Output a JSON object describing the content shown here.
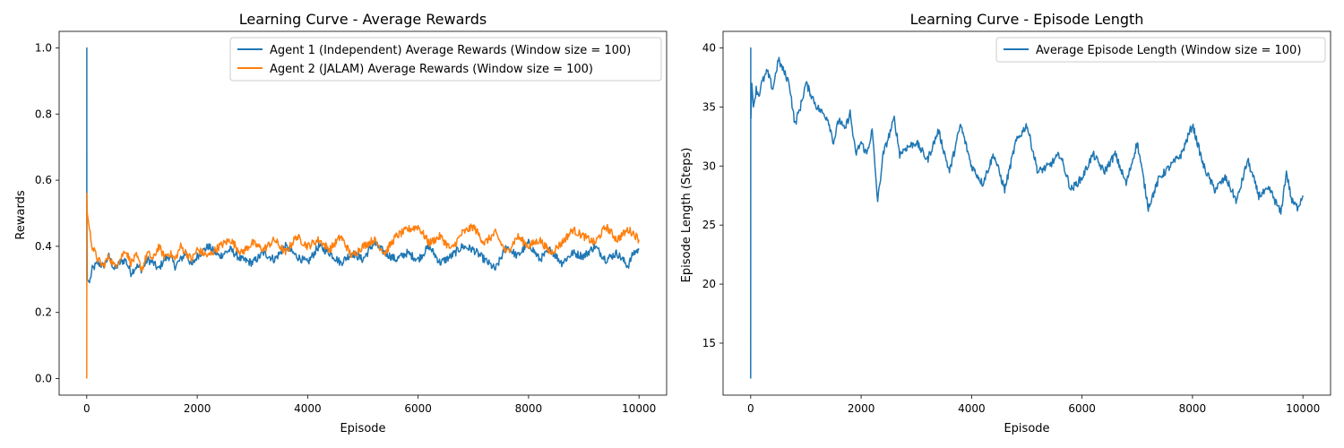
{
  "chart_data": [
    {
      "type": "line",
      "title": "Learning Curve - Average Rewards",
      "xlabel": "Episode",
      "ylabel": "Rewards",
      "xlim": [
        -500,
        10500
      ],
      "ylim": [
        -0.05,
        1.05
      ],
      "xticks": [
        0,
        2000,
        4000,
        6000,
        8000,
        10000
      ],
      "yticks": [
        0.0,
        0.2,
        0.4,
        0.6,
        0.8,
        1.0
      ],
      "xtick_labels": [
        "0",
        "2000",
        "4000",
        "6000",
        "8000",
        "10000"
      ],
      "ytick_labels": [
        "0.0",
        "0.2",
        "0.4",
        "0.6",
        "0.8",
        "1.0"
      ],
      "legend_position": "upper right",
      "grid": false,
      "series": [
        {
          "name": "Agent 1 (Independent) Average Rewards (Window size = 100)",
          "color": "#1f77b4",
          "x": [
            0,
            1,
            2,
            5,
            10,
            50,
            100,
            200,
            300,
            400,
            500,
            600,
            700,
            800,
            900,
            1000,
            1100,
            1200,
            1300,
            1400,
            1500,
            1600,
            1700,
            1800,
            1900,
            2000,
            2200,
            2400,
            2600,
            2800,
            3000,
            3200,
            3400,
            3600,
            3800,
            4000,
            4200,
            4400,
            4600,
            4800,
            5000,
            5200,
            5400,
            5600,
            5800,
            6000,
            6200,
            6400,
            6600,
            6800,
            7000,
            7200,
            7400,
            7600,
            7800,
            8000,
            8200,
            8400,
            8600,
            8800,
            9000,
            9200,
            9400,
            9600,
            9800,
            9900,
            10000
          ],
          "values": [
            0.3,
            1.0,
            0.55,
            0.45,
            0.3,
            0.29,
            0.33,
            0.35,
            0.34,
            0.37,
            0.33,
            0.35,
            0.36,
            0.32,
            0.34,
            0.33,
            0.36,
            0.35,
            0.33,
            0.36,
            0.37,
            0.34,
            0.36,
            0.38,
            0.34,
            0.37,
            0.4,
            0.37,
            0.39,
            0.36,
            0.35,
            0.38,
            0.36,
            0.4,
            0.37,
            0.35,
            0.4,
            0.38,
            0.35,
            0.38,
            0.36,
            0.41,
            0.38,
            0.36,
            0.38,
            0.36,
            0.4,
            0.35,
            0.37,
            0.4,
            0.39,
            0.36,
            0.33,
            0.4,
            0.37,
            0.41,
            0.36,
            0.39,
            0.35,
            0.38,
            0.37,
            0.4,
            0.36,
            0.38,
            0.34,
            0.38,
            0.39
          ]
        },
        {
          "name": "Agent 2 (JALAM) Average Rewards (Window size = 100)",
          "color": "#ff7f0e",
          "x": [
            0,
            1,
            3,
            10,
            50,
            100,
            200,
            300,
            400,
            500,
            600,
            700,
            800,
            900,
            1000,
            1100,
            1200,
            1300,
            1400,
            1500,
            1600,
            1700,
            1800,
            1900,
            2000,
            2200,
            2400,
            2600,
            2800,
            3000,
            3200,
            3400,
            3600,
            3800,
            4000,
            4200,
            4400,
            4600,
            4800,
            5000,
            5200,
            5400,
            5600,
            5800,
            6000,
            6200,
            6400,
            6600,
            6800,
            7000,
            7200,
            7400,
            7600,
            7800,
            8000,
            8200,
            8400,
            8600,
            8800,
            9000,
            9200,
            9400,
            9600,
            9800,
            9900,
            10000
          ],
          "values": [
            0.0,
            0.3,
            0.56,
            0.5,
            0.45,
            0.4,
            0.36,
            0.34,
            0.37,
            0.34,
            0.36,
            0.39,
            0.35,
            0.37,
            0.33,
            0.38,
            0.36,
            0.4,
            0.37,
            0.38,
            0.36,
            0.4,
            0.38,
            0.36,
            0.39,
            0.37,
            0.4,
            0.42,
            0.38,
            0.41,
            0.39,
            0.42,
            0.38,
            0.43,
            0.4,
            0.42,
            0.39,
            0.43,
            0.37,
            0.4,
            0.42,
            0.38,
            0.43,
            0.45,
            0.46,
            0.41,
            0.43,
            0.39,
            0.44,
            0.46,
            0.41,
            0.44,
            0.38,
            0.43,
            0.4,
            0.42,
            0.38,
            0.41,
            0.45,
            0.43,
            0.41,
            0.46,
            0.42,
            0.45,
            0.44,
            0.42
          ]
        }
      ]
    },
    {
      "type": "line",
      "title": "Learning Curve - Episode Length",
      "xlabel": "Episode",
      "ylabel": "Episode Length (Steps)",
      "xlim": [
        -500,
        10500
      ],
      "ylim": [
        10.6,
        41.4
      ],
      "xticks": [
        0,
        2000,
        4000,
        6000,
        8000,
        10000
      ],
      "yticks": [
        15,
        20,
        25,
        30,
        35,
        40
      ],
      "xtick_labels": [
        "0",
        "2000",
        "4000",
        "6000",
        "8000",
        "10000"
      ],
      "ytick_labels": [
        "15",
        "20",
        "25",
        "30",
        "35",
        "40"
      ],
      "legend_position": "upper right",
      "grid": false,
      "series": [
        {
          "name": "Average Episode Length (Window size = 100)",
          "color": "#1f77b4",
          "x": [
            0,
            1,
            2,
            5,
            20,
            50,
            100,
            150,
            200,
            300,
            400,
            500,
            600,
            700,
            800,
            900,
            1000,
            1100,
            1200,
            1300,
            1400,
            1500,
            1600,
            1700,
            1800,
            1900,
            2000,
            2100,
            2200,
            2300,
            2400,
            2500,
            2600,
            2700,
            2800,
            3000,
            3200,
            3400,
            3600,
            3800,
            4000,
            4200,
            4400,
            4600,
            4800,
            5000,
            5200,
            5400,
            5600,
            5800,
            6000,
            6200,
            6400,
            6600,
            6800,
            7000,
            7200,
            7400,
            7600,
            7800,
            8000,
            8200,
            8400,
            8600,
            8800,
            9000,
            9200,
            9400,
            9600,
            9700,
            9800,
            9900,
            10000
          ],
          "values": [
            12,
            40,
            36,
            34,
            37,
            35,
            36.5,
            36,
            37,
            38,
            36.5,
            39,
            38,
            37,
            33.5,
            35,
            37,
            36,
            35,
            34.5,
            34,
            32,
            34,
            33,
            34.5,
            31,
            32,
            31,
            33,
            27,
            31,
            32.5,
            34,
            31,
            31.5,
            32,
            30.5,
            33,
            29.5,
            33.5,
            30,
            28.5,
            31,
            28,
            32,
            33.5,
            29.5,
            30,
            31,
            28,
            29,
            31,
            29.5,
            31,
            28.5,
            32,
            26.5,
            29,
            30,
            31,
            33.5,
            30,
            28,
            29,
            27,
            30.5,
            27.5,
            28,
            26,
            29.5,
            27,
            26.5,
            27.5
          ]
        }
      ]
    }
  ]
}
